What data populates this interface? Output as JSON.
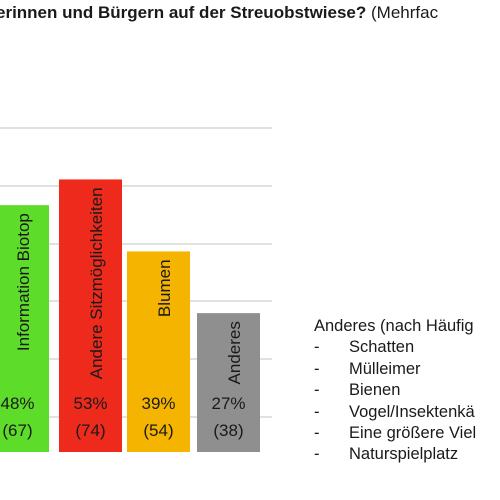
{
  "chart_data": {
    "type": "bar",
    "title": "erinnen und Bürgern auf der Streuobstwiese?",
    "title_suffix": "(Mehrfac",
    "ylim": [
      0,
      63
    ],
    "grid": true,
    "categories": [
      "Information Biotop",
      "Andere Sitzmöglichkeiten",
      "Blumen",
      "Anderes"
    ],
    "series": [
      {
        "values": [
          48,
          53,
          39,
          27
        ],
        "percent_labels": [
          "48%",
          "53%",
          "39%",
          "27%"
        ],
        "count_labels": [
          "(67)",
          "(74)",
          "(54)",
          "(38)"
        ],
        "colors": [
          "#5ddc2a",
          "#ee2a1c",
          "#f5b400",
          "#8f8f8f"
        ]
      }
    ],
    "annotation": {
      "heading": "Anderes (nach Häufig",
      "bullet": "-",
      "items": [
        "Schatten",
        "Mülleimer",
        "Bienen",
        "Vogel/Insektenkä",
        "Eine größere Viel",
        "Naturspielplatz"
      ]
    }
  }
}
